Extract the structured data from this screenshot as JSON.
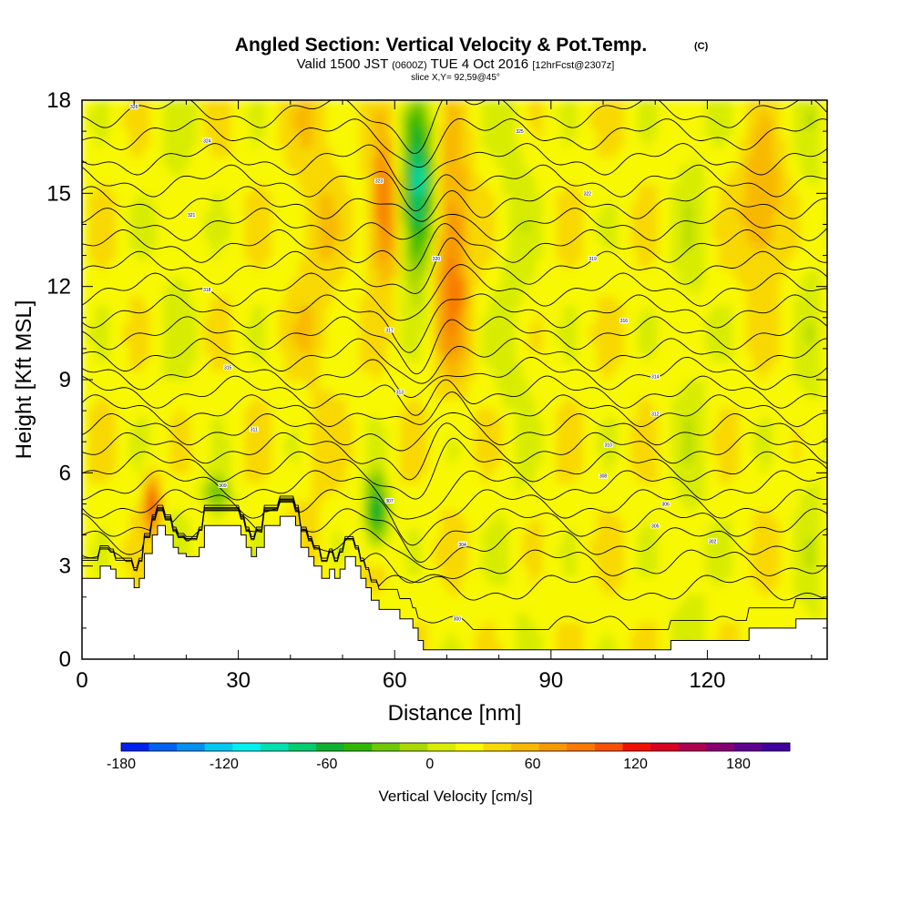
{
  "header": {
    "title": "Angled Section: Vertical Velocity & Pot.Temp.",
    "title_copyright": "(C)",
    "valid_prefix": "Valid 1500 JST",
    "valid_utc": "(0600Z)",
    "valid_date": "TUE 4 Oct 2016",
    "forecast": "[12hrFcst@2307z]",
    "slice": "slice X,Y= 92,59@45°"
  },
  "chart_data": {
    "type": "heatmap",
    "xlabel": "Distance [nm]",
    "ylabel": "Height [Kft MSL]",
    "xlim": [
      0,
      143
    ],
    "ylim": [
      0,
      18
    ],
    "x_ticks": [
      0,
      30,
      60,
      90,
      120
    ],
    "y_ticks": [
      0,
      3,
      6,
      9,
      12,
      15,
      18
    ],
    "colorbar": {
      "label": "Vertical Velocity [cm/s]",
      "range": [
        -180,
        210
      ],
      "step": 15,
      "tick_values": [
        -180,
        -120,
        -60,
        0,
        60,
        120,
        180
      ],
      "colors": [
        "#0022ee",
        "#0060f0",
        "#0090f0",
        "#00c8f0",
        "#00f0f0",
        "#00e0b0",
        "#00cc70",
        "#10b030",
        "#30b800",
        "#70c800",
        "#a8d800",
        "#d8ec00",
        "#f8f800",
        "#f8d800",
        "#f8b800",
        "#f89800",
        "#f87800",
        "#f85000",
        "#f01000",
        "#d80020",
        "#b00050",
        "#880070",
        "#600090",
        "#4000a0"
      ]
    },
    "features": [
      {
        "name": "downdraft",
        "x_range": [
          61,
          68
        ],
        "height_range": [
          12,
          18
        ],
        "peak": -110
      },
      {
        "name": "updraft",
        "x_range": [
          67,
          75
        ],
        "height_range": [
          9,
          17
        ],
        "peak": 60
      },
      {
        "name": "updraft",
        "x_range": [
          55,
          61
        ],
        "height_range": [
          12,
          17
        ],
        "peak": 70
      },
      {
        "name": "updraft",
        "x_range": [
          126,
          135
        ],
        "height_range": [
          12,
          17
        ],
        "peak": 45
      },
      {
        "name": "downdraft",
        "x_range": [
          54,
          59
        ],
        "height_range": [
          3.5,
          6
        ],
        "peak": -90
      },
      {
        "name": "downdraft",
        "x_range": [
          23,
          29
        ],
        "height_range": [
          4.5,
          6
        ],
        "peak": -50
      },
      {
        "name": "updraft",
        "x_range": [
          12,
          15
        ],
        "height_range": [
          4,
          6
        ],
        "peak": 90
      }
    ],
    "isentropes": [
      {
        "theta": 300,
        "base_height": 1.0,
        "label_at": [
          72,
          1.3
        ]
      },
      {
        "theta": 302,
        "base_height": 2.3,
        "label_at": [
          121,
          3.8
        ]
      },
      {
        "theta": 304,
        "base_height": 3.1,
        "label_at": [
          73,
          3.7
        ]
      },
      {
        "theta": 305,
        "base_height": 3.8,
        "label_at": [
          110,
          4.3
        ]
      },
      {
        "theta": 306,
        "base_height": 4.4,
        "label_at": [
          112,
          5.0
        ]
      },
      {
        "theta": 307,
        "base_height": 5.0,
        "label_at": [
          59,
          5.1
        ]
      },
      {
        "theta": 308,
        "base_height": 5.6,
        "label_at": [
          100,
          5.9
        ]
      },
      {
        "theta": 309,
        "base_height": 6.2,
        "label_at": [
          27,
          5.6
        ]
      },
      {
        "theta": 310,
        "base_height": 6.8,
        "label_at": [
          101,
          6.9
        ]
      },
      {
        "theta": 311,
        "base_height": 7.4,
        "label_at": [
          33,
          7.4
        ]
      },
      {
        "theta": 312,
        "base_height": 8.0,
        "label_at": [
          110,
          7.9
        ]
      },
      {
        "theta": 313,
        "base_height": 8.6,
        "label_at": [
          61,
          8.6
        ]
      },
      {
        "theta": 314,
        "base_height": 9.2,
        "label_at": [
          110,
          9.1
        ]
      },
      {
        "theta": 315,
        "base_height": 9.8,
        "label_at": [
          28,
          9.4
        ]
      },
      {
        "theta": 316,
        "base_height": 10.5,
        "label_at": [
          104,
          10.9
        ]
      },
      {
        "theta": 317,
        "base_height": 11.2,
        "label_at": [
          59,
          10.6
        ]
      },
      {
        "theta": 318,
        "base_height": 11.9,
        "label_at": [
          24,
          11.9
        ]
      },
      {
        "theta": 319,
        "base_height": 12.6,
        "label_at": [
          98,
          12.9
        ]
      },
      {
        "theta": 320,
        "base_height": 13.3,
        "label_at": [
          68,
          12.9
        ]
      },
      {
        "theta": 321,
        "base_height": 14.0,
        "label_at": [
          21,
          14.3
        ]
      },
      {
        "theta": 322,
        "base_height": 14.7,
        "label_at": [
          97,
          15.0
        ]
      },
      {
        "theta": 323,
        "base_height": 15.4,
        "label_at": [
          57,
          15.4
        ]
      },
      {
        "theta": 324,
        "base_height": 16.1,
        "label_at": [
          24,
          16.7
        ]
      },
      {
        "theta": 325,
        "base_height": 16.9,
        "label_at": [
          84,
          17.0
        ]
      },
      {
        "theta": 326,
        "base_height": 17.6,
        "label_at": [
          10,
          17.8
        ]
      }
    ],
    "terrain": [
      [
        0,
        2.6
      ],
      [
        3.5,
        2.6
      ],
      [
        3.5,
        3.0
      ],
      [
        5.5,
        3.0
      ],
      [
        5.5,
        2.9
      ],
      [
        6.5,
        2.9
      ],
      [
        6.5,
        2.6
      ],
      [
        10,
        2.6
      ],
      [
        10,
        2.3
      ],
      [
        11,
        2.3
      ],
      [
        11,
        2.6
      ],
      [
        12,
        2.6
      ],
      [
        12,
        3.4
      ],
      [
        13.5,
        3.4
      ],
      [
        13.5,
        4.0
      ],
      [
        14.5,
        4.0
      ],
      [
        14.5,
        4.3
      ],
      [
        16,
        4.3
      ],
      [
        16,
        4.0
      ],
      [
        17.5,
        4.0
      ],
      [
        17.5,
        3.6
      ],
      [
        18.5,
        3.6
      ],
      [
        18.5,
        3.4
      ],
      [
        20,
        3.4
      ],
      [
        20,
        3.3
      ],
      [
        22.5,
        3.3
      ],
      [
        22.5,
        3.6
      ],
      [
        23.5,
        3.6
      ],
      [
        23.5,
        4.3
      ],
      [
        30.5,
        4.3
      ],
      [
        30.5,
        4.0
      ],
      [
        31.5,
        4.0
      ],
      [
        31.5,
        3.6
      ],
      [
        32.5,
        3.6
      ],
      [
        32.5,
        3.3
      ],
      [
        33.5,
        3.3
      ],
      [
        33.5,
        3.6
      ],
      [
        35,
        3.6
      ],
      [
        35,
        4.3
      ],
      [
        38,
        4.3
      ],
      [
        38,
        4.6
      ],
      [
        41,
        4.6
      ],
      [
        41,
        4.3
      ],
      [
        42,
        4.3
      ],
      [
        42,
        3.6
      ],
      [
        43.5,
        3.6
      ],
      [
        43.5,
        3.3
      ],
      [
        44.5,
        3.3
      ],
      [
        44.5,
        3.0
      ],
      [
        46,
        3.0
      ],
      [
        46,
        2.6
      ],
      [
        47.5,
        2.6
      ],
      [
        47.5,
        2.9
      ],
      [
        48.5,
        2.9
      ],
      [
        48.5,
        2.6
      ],
      [
        49.5,
        2.6
      ],
      [
        49.5,
        2.9
      ],
      [
        50.5,
        2.9
      ],
      [
        50.5,
        3.3
      ],
      [
        52.5,
        3.3
      ],
      [
        52.5,
        3.0
      ],
      [
        53.5,
        3.0
      ],
      [
        53.5,
        2.6
      ],
      [
        54.5,
        2.6
      ],
      [
        54.5,
        2.3
      ],
      [
        55.5,
        2.3
      ],
      [
        55.5,
        1.9
      ],
      [
        57,
        1.9
      ],
      [
        57,
        1.6
      ],
      [
        61,
        1.6
      ],
      [
        61,
        1.3
      ],
      [
        63.5,
        1.3
      ],
      [
        63.5,
        1.0
      ],
      [
        64.5,
        1.0
      ],
      [
        64.5,
        0.6
      ],
      [
        65.5,
        0.6
      ],
      [
        65.5,
        0.3
      ],
      [
        113,
        0.3
      ],
      [
        113,
        0.6
      ],
      [
        128,
        0.6
      ],
      [
        128,
        1.0
      ],
      [
        137,
        1.0
      ],
      [
        137,
        1.3
      ],
      [
        143,
        1.3
      ]
    ]
  }
}
